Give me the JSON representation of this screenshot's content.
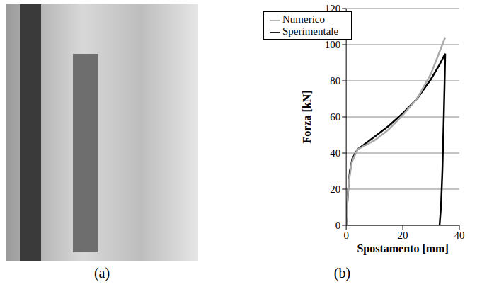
{
  "captions": [
    "(a)",
    "(b)"
  ],
  "chart_data": {
    "type": "line",
    "x_label": "Spostamento [mm]",
    "y_label": "Forza [kN]",
    "xlim": [
      0,
      40
    ],
    "xticks": [
      0,
      20,
      40
    ],
    "ylim": [
      0,
      120
    ],
    "yticks": [
      0,
      20,
      40,
      60,
      80,
      100,
      120
    ],
    "grid": true,
    "legend": "upper left",
    "series": [
      {
        "name": "Sperimentale",
        "color": "#000000",
        "line_style": "solid",
        "x": [
          0,
          0.3,
          0.7,
          1.3,
          2.2,
          4,
          10,
          15,
          20,
          25,
          30,
          33,
          35,
          34.8,
          34.5,
          34,
          33.5,
          33
        ],
        "values": [
          0,
          10,
          20,
          30,
          37,
          42,
          49,
          55,
          62,
          70,
          81,
          89,
          95,
          80,
          60,
          30,
          10,
          0
        ]
      },
      {
        "name": "Numerico",
        "color": "#aaaaaa",
        "line_style": "solid",
        "x": [
          0,
          0.5,
          1,
          2,
          4,
          10,
          15,
          20,
          25,
          30,
          35
        ],
        "values": [
          0,
          15,
          25,
          35,
          42,
          47,
          53,
          61,
          70,
          84,
          104
        ]
      }
    ]
  }
}
